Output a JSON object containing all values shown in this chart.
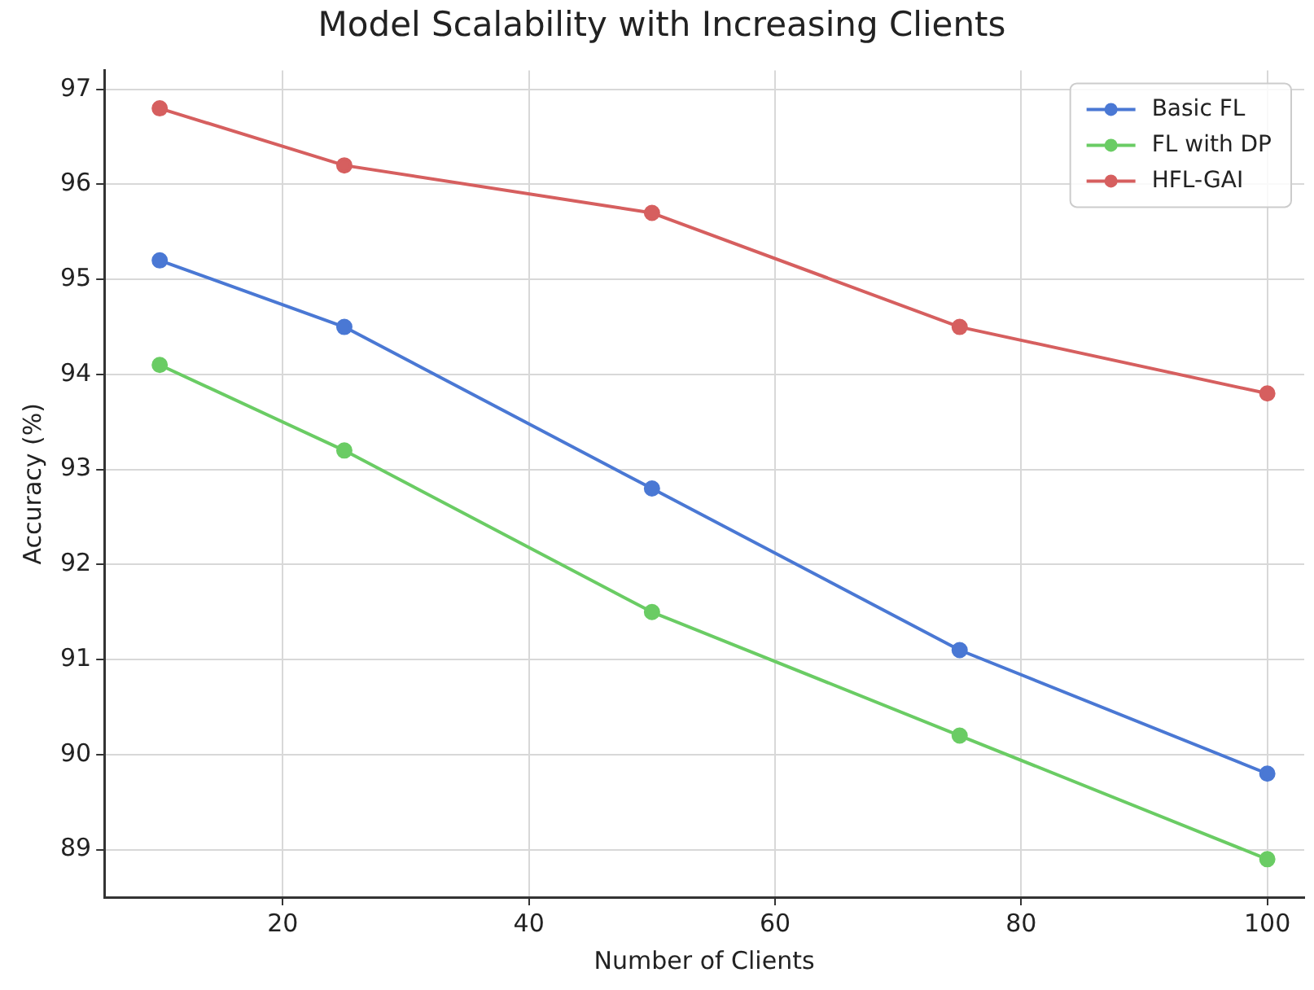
{
  "chart_data": {
    "type": "line",
    "title": "Model Scalability with Increasing Clients",
    "xlabel": "Number of Clients",
    "ylabel": "Accuracy (%)",
    "x": [
      10,
      25,
      50,
      75,
      100
    ],
    "series": [
      {
        "name": "Basic FL",
        "color": "#4a78d4",
        "values": [
          95.2,
          94.5,
          92.8,
          91.1,
          89.8
        ]
      },
      {
        "name": "FL with DP",
        "color": "#6acc64",
        "values": [
          94.1,
          93.2,
          91.5,
          90.2,
          88.9
        ]
      },
      {
        "name": "HFL-GAI",
        "color": "#d65f5f",
        "values": [
          96.8,
          96.2,
          95.7,
          94.5,
          93.8
        ]
      }
    ],
    "xlim": [
      5.5,
      103
    ],
    "xticks": [
      20,
      40,
      60,
      80,
      100
    ],
    "ylim": [
      88.5,
      97.2
    ],
    "yticks": [
      89,
      90,
      91,
      92,
      93,
      94,
      95,
      96,
      97
    ],
    "grid": true,
    "legend": "top right",
    "marker": "circle",
    "line_style": "solid"
  }
}
